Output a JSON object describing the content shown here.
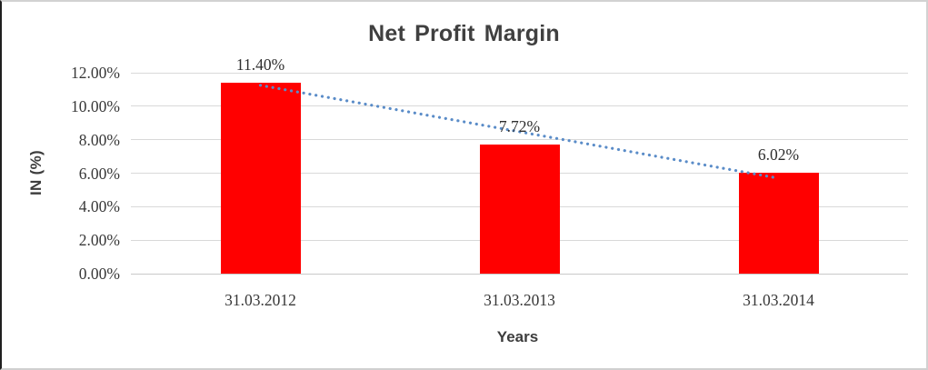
{
  "chart_data": {
    "type": "bar",
    "title": "Net Profit Margin",
    "xlabel": "Years",
    "ylabel": "IN (%)",
    "categories": [
      "31.03.2012",
      "31.03.2013",
      "31.03.2014"
    ],
    "values": [
      11.4,
      7.72,
      6.02
    ],
    "data_labels": [
      "11.40%",
      "7.72%",
      "6.02%"
    ],
    "ylim": [
      0,
      12
    ],
    "yticks": [
      {
        "value": 0,
        "label": "0.00%"
      },
      {
        "value": 2,
        "label": "2.00%"
      },
      {
        "value": 4,
        "label": "4.00%"
      },
      {
        "value": 6,
        "label": "6.00%"
      },
      {
        "value": 8,
        "label": "8.00%"
      },
      {
        "value": 10,
        "label": "10.00%"
      },
      {
        "value": 12,
        "label": "12.00%"
      }
    ],
    "grid": "horizontal",
    "legend": "none",
    "bar_color": "#ff0000",
    "trendline": {
      "style": "dotted",
      "color": "#5a8cc8",
      "start_value": 11.25,
      "end_value": 5.7
    }
  },
  "colors": {
    "gridline": "#d9d9d9",
    "baseline": "#c9c9c9",
    "title_text": "#404040",
    "axis_text": "#3d3d3d",
    "label_text": "#2e2e2e"
  }
}
